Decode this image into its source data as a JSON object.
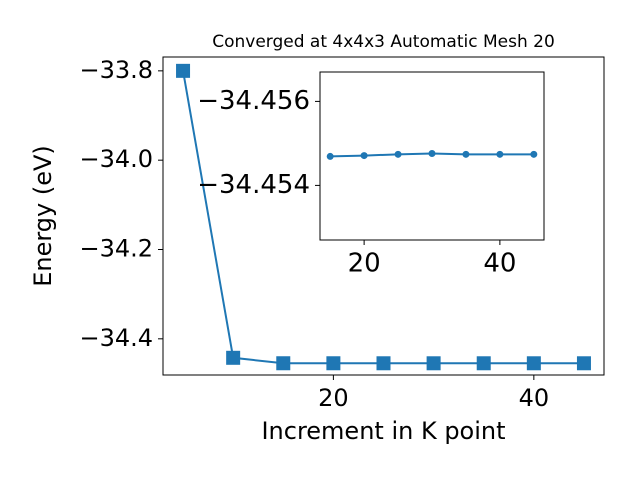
{
  "chart_data": [
    {
      "type": "line",
      "title": "Converged at 4x4x3 Automatic Mesh 20",
      "xlabel": "Increment in K point",
      "ylabel": "Energy (eV)",
      "x": [
        5,
        10,
        15,
        20,
        25,
        30,
        35,
        40,
        45
      ],
      "series": [
        {
          "color": "#1f77b4",
          "marker": "square",
          "values": [
            -33.8,
            -34.4425,
            -34.45469,
            -34.45471,
            -34.45474,
            -34.45476,
            -34.45474,
            -34.45474,
            -34.45474
          ]
        }
      ],
      "xlim": [
        3,
        47
      ],
      "ylim": [
        -34.481,
        -33.769
      ],
      "xticks": [
        20,
        40
      ],
      "yticks": [
        {
          "value": -33.8,
          "label": "−33.8"
        },
        {
          "value": -34.0,
          "label": "−34.0"
        },
        {
          "value": -34.2,
          "label": "−34.2"
        },
        {
          "value": -34.4,
          "label": "−34.4"
        }
      ]
    },
    {
      "type": "line",
      "x": [
        15,
        20,
        25,
        30,
        35,
        40,
        45
      ],
      "series": [
        {
          "color": "#1f77b4",
          "marker": "circle",
          "values": [
            -34.45469,
            -34.45471,
            -34.45474,
            -34.45476,
            -34.45474,
            -34.45474,
            -34.45474
          ]
        }
      ],
      "xlim": [
        13.5,
        46.5
      ],
      "ylim": [
        -34.4527,
        -34.4567
      ],
      "xticks": [
        20,
        40
      ],
      "yticks": [
        {
          "value": -34.456,
          "label": "−34.456"
        },
        {
          "value": -34.454,
          "label": "−34.454"
        }
      ]
    }
  ]
}
